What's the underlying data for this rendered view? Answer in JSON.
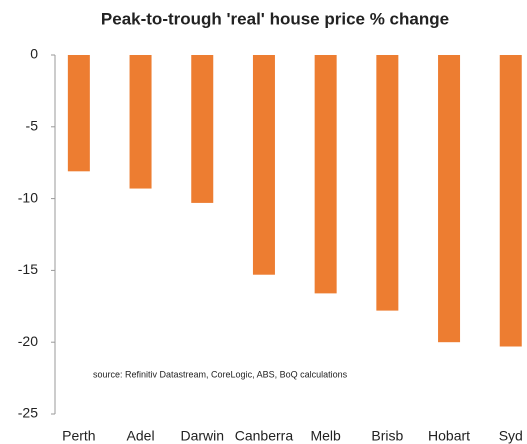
{
  "chart_data": {
    "type": "bar",
    "title": "Peak-to-trough 'real' house price % change",
    "annotation": "source:  Refinitiv Datastream, CoreLogic, ABS, BoQ calculations",
    "categories": [
      "Perth",
      "Adel",
      "Darwin",
      "Canberra",
      "Melb",
      "Brisb",
      "Hobart",
      "Syd"
    ],
    "values": [
      -8.1,
      -9.3,
      -10.3,
      -15.3,
      -16.6,
      -17.8,
      -20.0,
      -20.3
    ],
    "color": "#ed7d31",
    "ylim": [
      -25,
      0
    ],
    "yticks": [
      0,
      -5,
      -10,
      -15,
      -20,
      -25
    ],
    "grid": false
  }
}
